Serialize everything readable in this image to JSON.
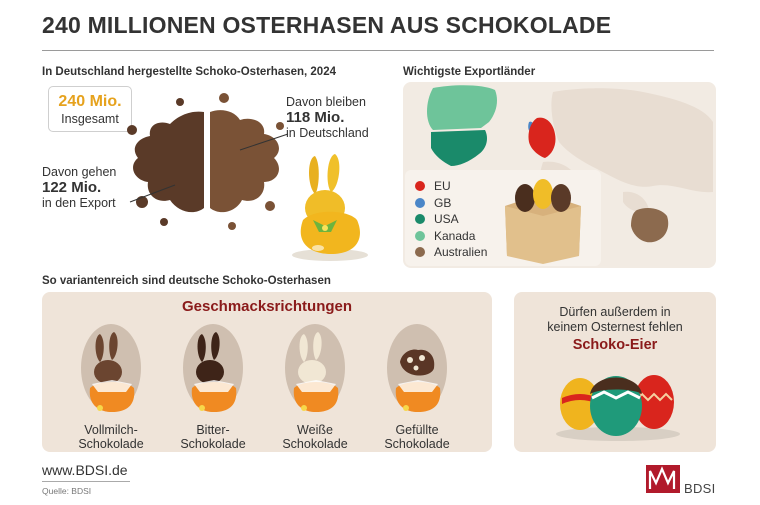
{
  "title": "240 MILLIONEN OSTERHASEN AUS SCHOKOLADE",
  "production": {
    "label": "In Deutschland hergestellte Schoko-Osterhasen, 2024",
    "total_value": "240 Mio.",
    "total_caption": "Insgesamt",
    "stay": {
      "pre": "Davon bleiben",
      "value": "118 Mio.",
      "post": "in Deutschland"
    },
    "export": {
      "pre": "Davon gehen",
      "value": "122 Mio.",
      "post": "in den Export"
    }
  },
  "exports": {
    "label": "Wichtigste Exportländer",
    "legend": [
      {
        "name": "EU",
        "color": "#d9251d"
      },
      {
        "name": "GB",
        "color": "#4a86c8"
      },
      {
        "name": "USA",
        "color": "#1a8a6a"
      },
      {
        "name": "Kanada",
        "color": "#6ec49a"
      },
      {
        "name": "Australien",
        "color": "#8c6a4e"
      }
    ]
  },
  "variants": {
    "label": "So variantenreich sind deutsche Schoko-Osterhasen",
    "heading": "Geschmacksrichtungen",
    "flavors": [
      {
        "line1": "Vollmilch-",
        "line2": "Schokolade",
        "color": "#6b4530"
      },
      {
        "line1": "Bitter-",
        "line2": "Schokolade",
        "color": "#3e2418"
      },
      {
        "line1": "Weiße",
        "line2": "Schokolade",
        "color": "#f1e7d4"
      },
      {
        "line1": "Gefüllte",
        "line2": "Schokolade",
        "color": "#5a3626"
      }
    ]
  },
  "eggs": {
    "line1": "Dürfen außerdem in",
    "line2": "keinem Osternest fehlen",
    "title": "Schoko-Eier"
  },
  "footer": {
    "website": "www.BDSI.de",
    "source": "Quelle: BDSI",
    "logo_text": "BDSI"
  }
}
